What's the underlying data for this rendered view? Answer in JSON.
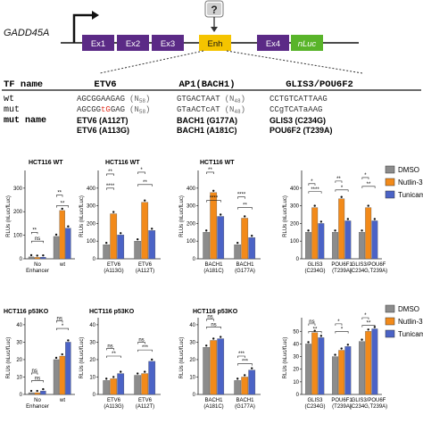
{
  "gene": "GADD45A",
  "question_mark": "?",
  "exons": {
    "ex1": "Ex1",
    "ex2": "Ex2",
    "ex3": "Ex3",
    "enh": "Enh",
    "ex4": "Ex4",
    "nluc": "nLuc"
  },
  "table": {
    "row_labels": {
      "tf": "TF name",
      "wt": "wt",
      "mut": "mut",
      "mutname": "mut name"
    },
    "cols": [
      {
        "tf": "ETV6",
        "wt_a": "AGCGGAAGAG",
        "gap_wt": "(N",
        "gap_wt_n": "58",
        "mut_a": "AGCGG",
        "mut_b": "tG",
        "mut_c": "GAG",
        "gap_mut": "(N",
        "gap_mut_n": "58",
        "names": [
          "ETV6 (A112T)",
          "ETV6 (A113G)"
        ]
      },
      {
        "tf": "AP1(BACH1)",
        "wt_a": "GTGACTAAT",
        "gap_wt": "(N",
        "gap_wt_n": "48",
        "mut_a": "GTaACTcAT",
        "gap_mut": "(N",
        "gap_mut_n": "48",
        "names": [
          "BACH1 (G177A)",
          "BACH1 (A181C)"
        ]
      },
      {
        "tf": "GLIS3/POU6F2",
        "wt_a": "CCTGTCATTAAG",
        "mut_a": "CCgTCATaAAG",
        "names": [
          "GLIS3 (C234G)",
          "POU6F2 (T239A)"
        ]
      }
    ]
  },
  "legend": {
    "dmso": "DMSO",
    "nutlin": "Nutlin-3",
    "tunica": "Tunicam",
    "colors": {
      "dmso": "#8c8c8c",
      "nutlin": "#f28a1a",
      "tunica": "#4b63c6"
    }
  },
  "ylabel": "RLUs (nLuc/fLuc)",
  "sig": {
    "ns": "ns",
    "s1": "*",
    "s2": "**",
    "s3": "***",
    "s4": "****"
  },
  "chart_data": [
    {
      "type": "bar",
      "title": "HCT116 WT",
      "categories": [
        "No Enhancer",
        "wt"
      ],
      "yticks": [
        0,
        100,
        200,
        300
      ],
      "ylim": [
        0,
        360
      ],
      "values": [
        [
          8,
          6,
          7
        ],
        [
          95,
          205,
          130
        ]
      ]
    },
    {
      "type": "bar",
      "title": "HCT116 WT",
      "categories": [
        "ETV6 (A113G)",
        "ETV6 (A112T)"
      ],
      "yticks": [
        0,
        100,
        200,
        300,
        400
      ],
      "ylim": [
        0,
        480
      ],
      "values": [
        [
          80,
          255,
          135
        ],
        [
          100,
          320,
          160
        ]
      ]
    },
    {
      "type": "bar",
      "title": "HCT116 WT",
      "categories": [
        "BACH1 (A181C)",
        "BACH1 (G177A)"
      ],
      "yticks": [
        0,
        100,
        200,
        300,
        400
      ],
      "ylim": [
        0,
        480
      ],
      "values": [
        [
          150,
          375,
          240
        ],
        [
          80,
          230,
          120
        ]
      ]
    },
    {
      "type": "bar",
      "title": "",
      "categories": [
        "GLIS3 (C234G)",
        "POU6F1 (T239A)",
        "GLIS3/POU6F (C234G,T239A)"
      ],
      "yticks": [
        0,
        100,
        200,
        300,
        400
      ],
      "ylim": [
        0,
        480
      ],
      "values": [
        [
          150,
          290,
          200
        ],
        [
          150,
          340,
          215
        ],
        [
          150,
          290,
          215
        ]
      ]
    },
    {
      "type": "bar",
      "title": "HCT116 p53KO",
      "categories": [
        "No Enhancer",
        "wt"
      ],
      "yticks": [
        0,
        10,
        20,
        30,
        40
      ],
      "ylim": [
        0,
        42
      ],
      "values": [
        [
          1,
          1,
          2
        ],
        [
          20,
          22,
          30
        ]
      ]
    },
    {
      "type": "bar",
      "title": "HCT116 p53KO",
      "categories": [
        "ETV6 (A113G)",
        "ETV6 (A112T)"
      ],
      "yticks": [
        0,
        10,
        20,
        30,
        40
      ],
      "ylim": [
        0,
        42
      ],
      "values": [
        [
          8,
          9,
          12
        ],
        [
          11,
          12,
          19
        ]
      ]
    },
    {
      "type": "bar",
      "title": "HCT116 p53KO",
      "categories": [
        "BACH1 (A181C)",
        "BACH1 (G177A)"
      ],
      "yticks": [
        0,
        10,
        20,
        30,
        40
      ],
      "ylim": [
        0,
        42
      ],
      "values": [
        [
          27,
          31,
          32
        ],
        [
          8,
          10,
          14
        ]
      ]
    },
    {
      "type": "bar",
      "title": "",
      "categories": [
        "GLIS3 (C234G)",
        "POU6F1 (T239A)",
        "GLIS3/POU6F (C234G,T239A)"
      ],
      "yticks": [
        0,
        10,
        20,
        30,
        40,
        50
      ],
      "ylim": [
        0,
        58
      ],
      "values": [
        [
          40,
          49,
          45
        ],
        [
          30,
          35,
          38
        ],
        [
          42,
          50,
          52
        ]
      ]
    }
  ]
}
